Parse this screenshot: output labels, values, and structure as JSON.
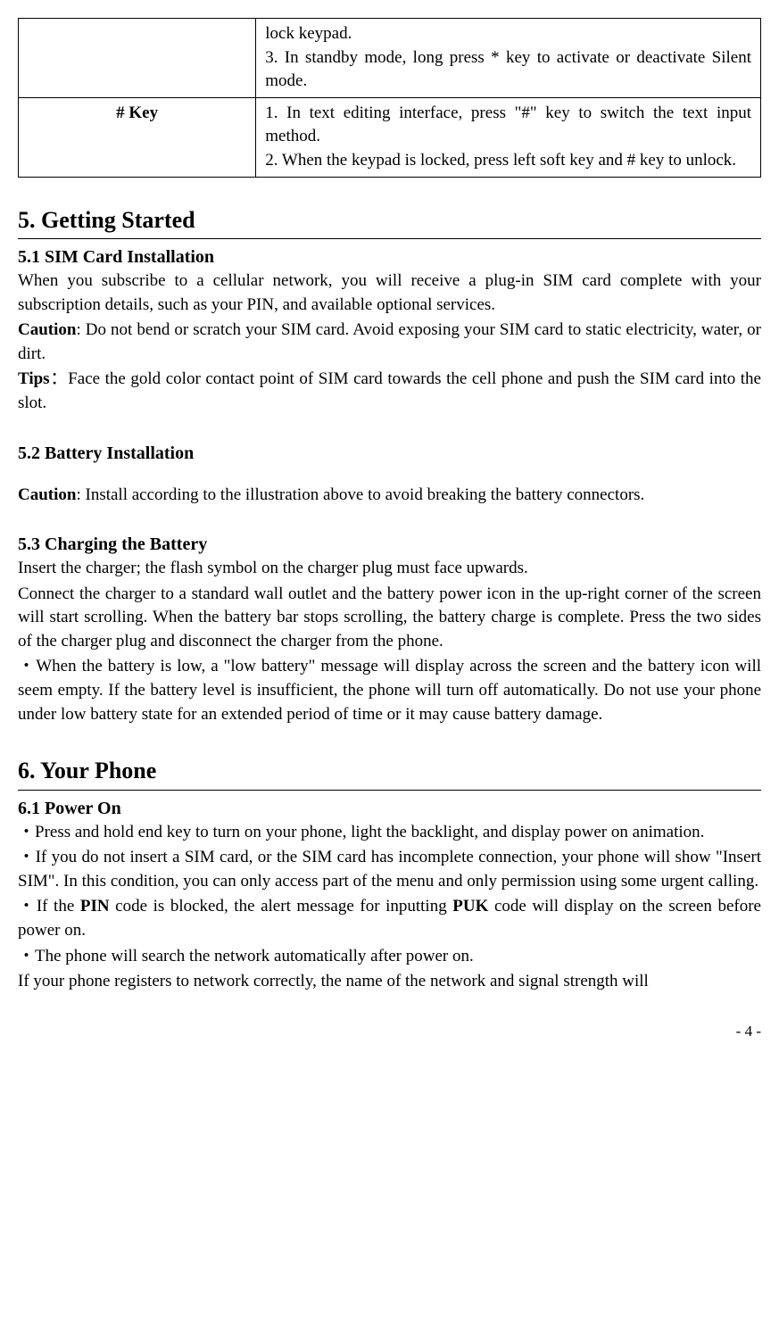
{
  "table": {
    "row0": {
      "cellA": "",
      "cellB": "lock keypad.\n3. In standby mode, long press * key to activate or deactivate Silent mode."
    },
    "row1": {
      "cellA": "# Key",
      "cellB": "1. In text editing interface, press \"#\" key to switch the text input method.\n2. When the keypad is locked, press left soft key and # key to unlock."
    }
  },
  "section5": {
    "title": "5. Getting Started",
    "s51": {
      "heading": "5.1 SIM Card Installation",
      "p1": "When you subscribe to a cellular network, you will receive a plug-in SIM card complete with your subscription details, such as your PIN, and available optional services.",
      "p2_label": "Caution",
      "p2_rest": ": Do not bend or scratch your SIM card. Avoid exposing your SIM card to static electricity, water, or dirt.",
      "p3_label": "Tips",
      "p3_rest": "：Face the gold color contact point of SIM card towards the cell phone and push the SIM card into the slot."
    },
    "s52": {
      "heading": "5.2 Battery Installation",
      "p1_label": "Caution",
      "p1_rest": ": Install according to the illustration above to avoid breaking the battery connectors."
    },
    "s53": {
      "heading": "5.3 Charging the Battery",
      "p1": "Insert the charger; the flash symbol on the charger plug must face upwards.",
      "p2": "Connect the charger to a standard wall outlet and the battery power icon in the up-right corner of the screen will start scrolling. When the battery bar stops scrolling, the battery charge is complete. Press the two sides of the charger plug and disconnect the charger from the phone.",
      "p3": "・When the battery is low, a \"low battery\" message will display across the screen and the battery icon will seem empty. If the battery level is insufficient, the phone will turn off automatically. Do not use your phone under low battery state for an extended period of time or it may cause battery damage."
    }
  },
  "section6": {
    "title": "6. Your Phone",
    "s61": {
      "heading": "6.1 Power On",
      "p1": "・Press and hold end key to turn on your phone, light the backlight, and display power on animation.",
      "p2": "・If you do not insert a SIM card, or the SIM card has incomplete connection, your phone will show \"Insert SIM\". In this condition, you can only access part of the menu and only permission using some urgent calling.",
      "p3a": "・If the ",
      "p3b": "PIN",
      "p3c": " code is blocked, the alert message for inputting ",
      "p3d": "PUK",
      "p3e": " code will display on the screen before power on.",
      "p4": "・The phone will search the network automatically after power on.",
      "p5": "If your phone registers to network correctly, the name of the network and signal strength will"
    }
  },
  "footer": "- 4 -"
}
